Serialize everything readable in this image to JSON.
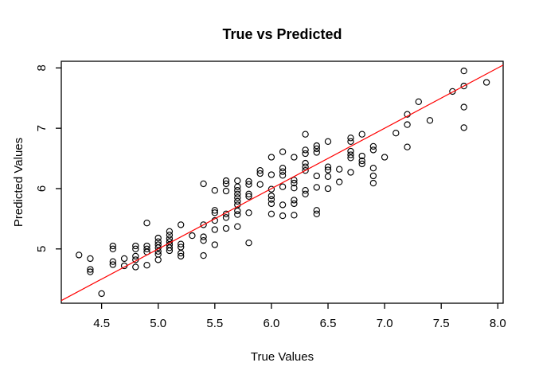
{
  "title": "True vs Predicted",
  "x_axis": {
    "label": "True Values",
    "ticks": [
      4.5,
      5.0,
      5.5,
      6.0,
      6.5,
      7.0,
      7.5,
      8.0
    ],
    "tick_labels": [
      "4.5",
      "5.0",
      "5.5",
      "6.0",
      "6.5",
      "7.0",
      "7.5",
      "8.0"
    ]
  },
  "y_axis": {
    "label": "Predicted Values",
    "ticks": [
      5,
      6,
      7,
      8
    ],
    "tick_labels": [
      "5",
      "6",
      "7",
      "8"
    ]
  },
  "colors": {
    "foreground": "#000000",
    "reference_line": "#FF0000",
    "background": "#FFFFFF"
  },
  "chart_data": {
    "type": "scatter",
    "title": "True vs Predicted",
    "xlabel": "True Values",
    "ylabel": "Predicted Values",
    "xlim": [
      4.144,
      8.047
    ],
    "ylim": [
      4.1,
      8.11
    ],
    "grid": false,
    "legend": false,
    "marker": "open-circle",
    "reference_line": {
      "type": "identity",
      "intercept": 0,
      "slope": 1,
      "color": "#FF0000"
    },
    "points": [
      [
        4.3,
        4.9
      ],
      [
        4.4,
        4.84
      ],
      [
        4.4,
        4.66
      ],
      [
        4.4,
        4.62
      ],
      [
        4.5,
        4.26
      ],
      [
        4.6,
        5.05
      ],
      [
        4.6,
        5.0
      ],
      [
        4.6,
        4.79
      ],
      [
        4.6,
        4.74
      ],
      [
        4.7,
        4.84
      ],
      [
        4.7,
        4.72
      ],
      [
        4.8,
        5.05
      ],
      [
        4.8,
        5.0
      ],
      [
        4.8,
        4.88
      ],
      [
        4.8,
        4.82
      ],
      [
        4.8,
        4.7
      ],
      [
        4.9,
        5.43
      ],
      [
        4.9,
        5.05
      ],
      [
        4.9,
        5.0
      ],
      [
        4.9,
        4.95
      ],
      [
        4.9,
        4.73
      ],
      [
        5.0,
        5.18
      ],
      [
        5.0,
        5.12
      ],
      [
        5.0,
        5.07
      ],
      [
        5.0,
        5.02
      ],
      [
        5.0,
        4.96
      ],
      [
        5.0,
        4.91
      ],
      [
        5.0,
        4.82
      ],
      [
        5.1,
        5.29
      ],
      [
        5.1,
        5.23
      ],
      [
        5.1,
        5.17
      ],
      [
        5.1,
        5.12
      ],
      [
        5.1,
        5.07
      ],
      [
        5.1,
        5.02
      ],
      [
        5.1,
        4.97
      ],
      [
        5.2,
        5.4
      ],
      [
        5.2,
        5.08
      ],
      [
        5.2,
        5.03
      ],
      [
        5.2,
        4.93
      ],
      [
        5.2,
        4.88
      ],
      [
        5.3,
        5.22
      ],
      [
        5.4,
        6.08
      ],
      [
        5.4,
        5.4
      ],
      [
        5.4,
        5.2
      ],
      [
        5.4,
        5.14
      ],
      [
        5.4,
        4.89
      ],
      [
        5.5,
        5.97
      ],
      [
        5.5,
        5.64
      ],
      [
        5.5,
        5.6
      ],
      [
        5.5,
        5.47
      ],
      [
        5.5,
        5.32
      ],
      [
        5.5,
        5.07
      ],
      [
        5.6,
        6.13
      ],
      [
        5.6,
        6.08
      ],
      [
        5.6,
        5.96
      ],
      [
        5.6,
        5.58
      ],
      [
        5.6,
        5.52
      ],
      [
        5.6,
        5.34
      ],
      [
        5.7,
        6.13
      ],
      [
        5.7,
        6.03
      ],
      [
        5.7,
        5.97
      ],
      [
        5.7,
        5.91
      ],
      [
        5.7,
        5.85
      ],
      [
        5.7,
        5.79
      ],
      [
        5.7,
        5.73
      ],
      [
        5.7,
        5.63
      ],
      [
        5.7,
        5.57
      ],
      [
        5.7,
        5.37
      ],
      [
        5.8,
        6.12
      ],
      [
        5.8,
        6.07
      ],
      [
        5.8,
        5.91
      ],
      [
        5.8,
        5.87
      ],
      [
        5.8,
        5.6
      ],
      [
        5.8,
        5.1
      ],
      [
        5.9,
        6.3
      ],
      [
        5.9,
        6.25
      ],
      [
        5.9,
        6.07
      ],
      [
        6.0,
        6.52
      ],
      [
        6.0,
        6.23
      ],
      [
        6.0,
        5.99
      ],
      [
        6.0,
        5.88
      ],
      [
        6.0,
        5.82
      ],
      [
        6.0,
        5.75
      ],
      [
        6.0,
        5.58
      ],
      [
        6.1,
        6.61
      ],
      [
        6.1,
        6.34
      ],
      [
        6.1,
        6.28
      ],
      [
        6.1,
        6.22
      ],
      [
        6.1,
        6.03
      ],
      [
        6.1,
        5.73
      ],
      [
        6.1,
        5.55
      ],
      [
        6.2,
        6.52
      ],
      [
        6.2,
        6.14
      ],
      [
        6.2,
        6.09
      ],
      [
        6.2,
        6.01
      ],
      [
        6.2,
        5.81
      ],
      [
        6.2,
        5.75
      ],
      [
        6.2,
        5.56
      ],
      [
        6.3,
        6.9
      ],
      [
        6.3,
        6.64
      ],
      [
        6.3,
        6.58
      ],
      [
        6.3,
        6.42
      ],
      [
        6.3,
        6.36
      ],
      [
        6.3,
        6.3
      ],
      [
        6.3,
        5.97
      ],
      [
        6.3,
        5.91
      ],
      [
        6.4,
        6.71
      ],
      [
        6.4,
        6.66
      ],
      [
        6.4,
        6.6
      ],
      [
        6.4,
        6.21
      ],
      [
        6.4,
        6.02
      ],
      [
        6.4,
        5.64
      ],
      [
        6.4,
        5.58
      ],
      [
        6.5,
        6.78
      ],
      [
        6.5,
        6.36
      ],
      [
        6.5,
        6.31
      ],
      [
        6.5,
        6.2
      ],
      [
        6.5,
        6.0
      ],
      [
        6.6,
        6.32
      ],
      [
        6.6,
        6.11
      ],
      [
        6.7,
        6.84
      ],
      [
        6.7,
        6.78
      ],
      [
        6.7,
        6.62
      ],
      [
        6.7,
        6.56
      ],
      [
        6.7,
        6.51
      ],
      [
        6.7,
        6.27
      ],
      [
        6.8,
        6.9
      ],
      [
        6.8,
        6.54
      ],
      [
        6.8,
        6.46
      ],
      [
        6.8,
        6.41
      ],
      [
        6.9,
        6.7
      ],
      [
        6.9,
        6.64
      ],
      [
        6.9,
        6.34
      ],
      [
        6.9,
        6.21
      ],
      [
        6.9,
        6.09
      ],
      [
        7.0,
        6.52
      ],
      [
        7.1,
        6.92
      ],
      [
        7.2,
        7.23
      ],
      [
        7.2,
        7.06
      ],
      [
        7.2,
        6.69
      ],
      [
        7.3,
        7.44
      ],
      [
        7.4,
        7.13
      ],
      [
        7.6,
        7.61
      ],
      [
        7.7,
        7.95
      ],
      [
        7.7,
        7.7
      ],
      [
        7.7,
        7.35
      ],
      [
        7.7,
        7.01
      ],
      [
        7.9,
        7.76
      ]
    ]
  }
}
